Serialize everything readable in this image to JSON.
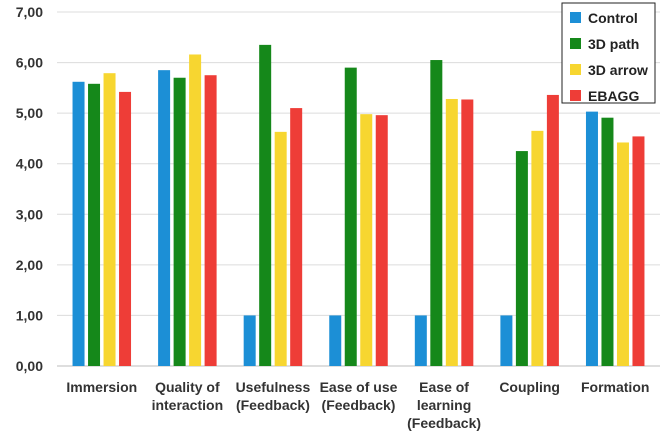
{
  "chart_data": {
    "type": "bar",
    "title": "",
    "xlabel": "",
    "ylabel": "",
    "categories": [
      [
        "Immersion"
      ],
      [
        "Quality of",
        "interaction"
      ],
      [
        "Usefulness",
        "(Feedback)"
      ],
      [
        "Ease of use",
        "(Feedback)"
      ],
      [
        "Ease of",
        "learning",
        "(Feedback)"
      ],
      [
        "Coupling"
      ],
      [
        "Formation"
      ]
    ],
    "ylim": [
      0,
      7
    ],
    "yticks": [
      "0,00",
      "1,00",
      "2,00",
      "3,00",
      "4,00",
      "5,00",
      "6,00",
      "7,00"
    ],
    "grid": true,
    "legend_position": "top-right",
    "series": [
      {
        "name": "Control",
        "color": "#1c8fd6",
        "values": [
          5.62,
          5.85,
          1.0,
          1.0,
          1.0,
          1.0,
          5.03
        ]
      },
      {
        "name": "3D path",
        "color": "#15881a",
        "values": [
          5.58,
          5.7,
          6.35,
          5.9,
          6.05,
          4.25,
          4.91
        ]
      },
      {
        "name": "3D arrow",
        "color": "#f7d630",
        "values": [
          5.79,
          6.16,
          4.63,
          4.98,
          5.28,
          4.65,
          4.42
        ]
      },
      {
        "name": "EBAGG",
        "color": "#ee3d37",
        "values": [
          5.42,
          5.75,
          5.1,
          4.96,
          5.27,
          5.36,
          4.54
        ]
      }
    ]
  }
}
